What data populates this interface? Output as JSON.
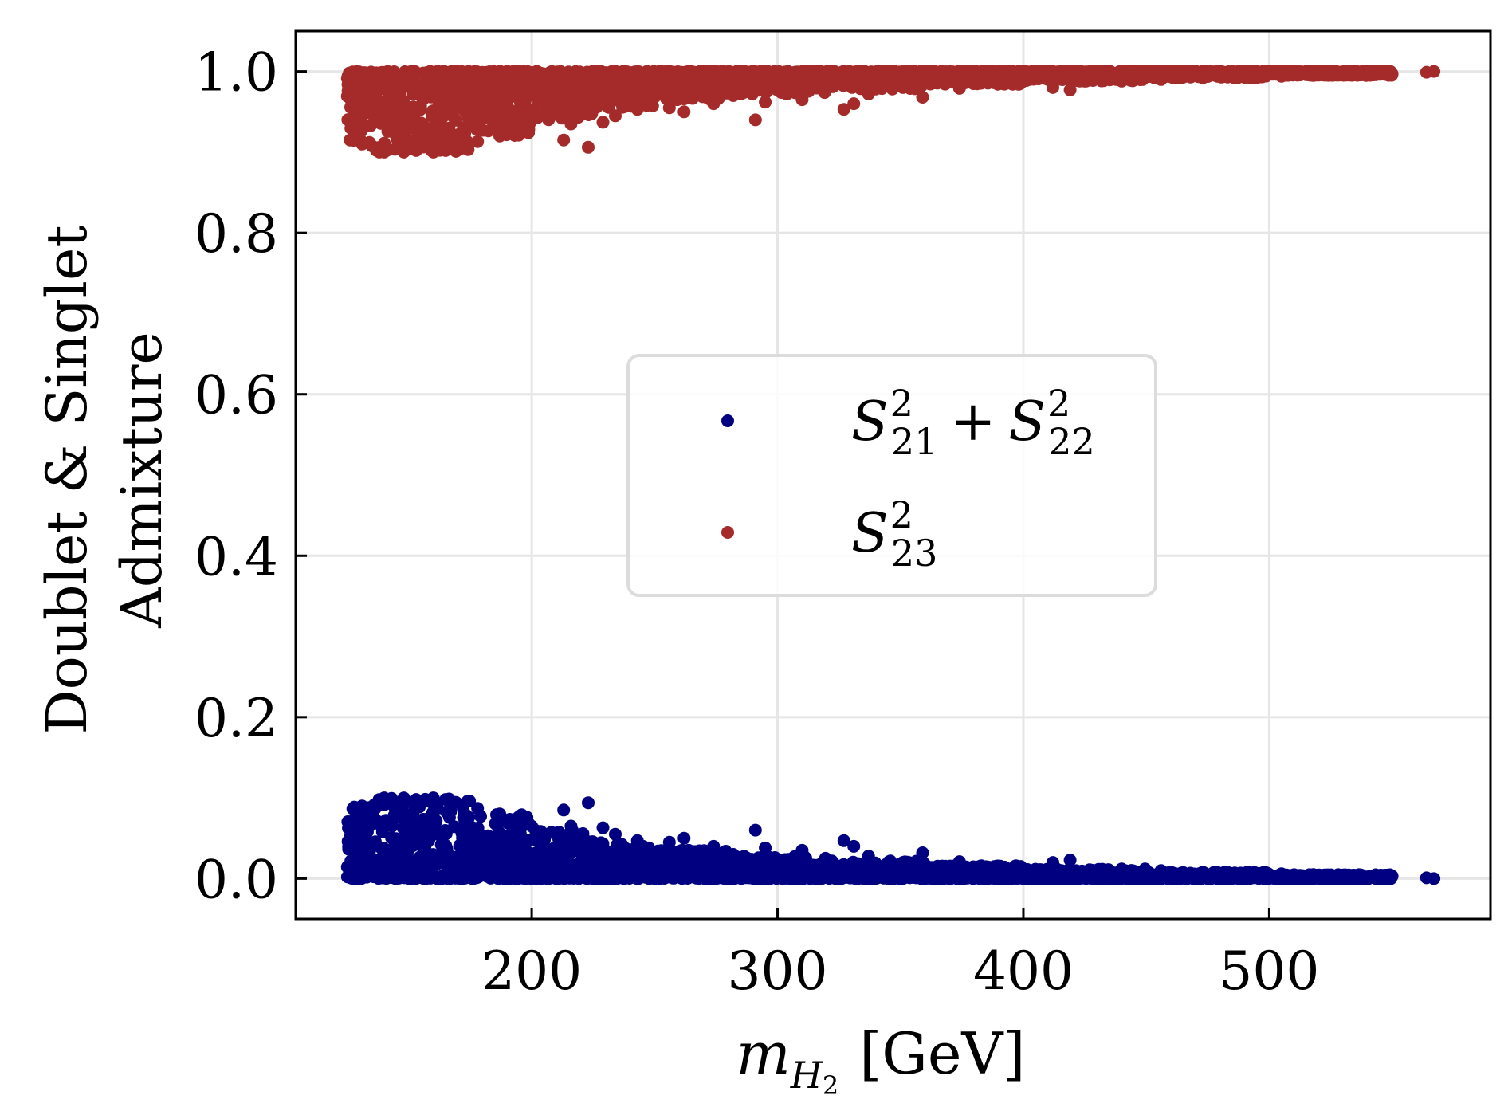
{
  "chart_data": {
    "type": "scatter",
    "title": "",
    "xlabel": {
      "base": "m",
      "sub": "H",
      "subsub": "2",
      "unit": "[GeV]"
    },
    "ylabel": {
      "line1": "Doublet & Singlet",
      "line2": "Admixture"
    },
    "xlim": [
      104,
      590
    ],
    "ylim": [
      -0.05,
      1.05
    ],
    "xticks": [
      200,
      300,
      400,
      500
    ],
    "xtick_labels": [
      "200",
      "300",
      "400",
      "500"
    ],
    "yticks": [
      0.0,
      0.2,
      0.4,
      0.6,
      0.8,
      1.0
    ],
    "ytick_labels": [
      "0.0",
      "0.2",
      "0.4",
      "0.6",
      "0.8",
      "1.0"
    ],
    "grid": true,
    "legend_placement": "center",
    "legend": [
      {
        "key": "doublet",
        "parts": [
          [
            "S",
            "2",
            "21"
          ],
          [
            "+"
          ],
          [
            "S",
            "2",
            "22"
          ]
        ]
      },
      {
        "key": "singlet",
        "parts": [
          [
            "S",
            "2",
            "23"
          ]
        ]
      }
    ],
    "colors": {
      "doublet": "#000080",
      "singlet": "#a52a2a",
      "grid": "#e6e6e6",
      "legend_border": "#dcdcdc"
    },
    "series": [
      {
        "name": "S^2_21 + S^2_22",
        "color": "#000080",
        "bands": [
          {
            "x": [
              125,
              135
            ],
            "ymax": 0.09
          },
          {
            "x": [
              135,
              150
            ],
            "ymax": 0.1
          },
          {
            "x": [
              150,
              175
            ],
            "ymax": 0.1
          },
          {
            "x": [
              175,
              200
            ],
            "ymax": 0.08
          },
          {
            "x": [
              200,
              225
            ],
            "ymax": 0.06
          },
          {
            "x": [
              225,
              250
            ],
            "ymax": 0.045
          },
          {
            "x": [
              250,
              280
            ],
            "ymax": 0.035
          },
          {
            "x": [
              280,
              320
            ],
            "ymax": 0.028
          },
          {
            "x": [
              320,
              360
            ],
            "ymax": 0.022
          },
          {
            "x": [
              360,
              400
            ],
            "ymax": 0.016
          },
          {
            "x": [
              400,
              450
            ],
            "ymax": 0.012
          },
          {
            "x": [
              450,
              500
            ],
            "ymax": 0.008
          },
          {
            "x": [
              500,
              550
            ],
            "ymax": 0.005
          }
        ],
        "points": [
          [
            129,
            0.06
          ],
          [
            131,
            0.09
          ],
          [
            134,
            0.088
          ],
          [
            140,
            0.1
          ],
          [
            148,
            0.1
          ],
          [
            153,
            0.098
          ],
          [
            160,
            0.1
          ],
          [
            165,
            0.098
          ],
          [
            172,
            0.09
          ],
          [
            178,
            0.087
          ],
          [
            187,
            0.08
          ],
          [
            198,
            0.075
          ],
          [
            206,
            0.055
          ],
          [
            213,
            0.085
          ],
          [
            216,
            0.065
          ],
          [
            223,
            0.094
          ],
          [
            229,
            0.063
          ],
          [
            234,
            0.055
          ],
          [
            243,
            0.047
          ],
          [
            256,
            0.045
          ],
          [
            262,
            0.05
          ],
          [
            274,
            0.04
          ],
          [
            282,
            0.03
          ],
          [
            291,
            0.06
          ],
          [
            295,
            0.038
          ],
          [
            310,
            0.035
          ],
          [
            327,
            0.047
          ],
          [
            331,
            0.04
          ],
          [
            337,
            0.028
          ],
          [
            351,
            0.02
          ],
          [
            359,
            0.032
          ],
          [
            374,
            0.021
          ],
          [
            390,
            0.015
          ],
          [
            412,
            0.02
          ],
          [
            419,
            0.023
          ],
          [
            440,
            0.012
          ],
          [
            456,
            0.01
          ],
          [
            473,
            0.008
          ],
          [
            486,
            0.007
          ],
          [
            505,
            0.006
          ],
          [
            518,
            0.005
          ],
          [
            528,
            0.004
          ],
          [
            535,
            0.002
          ],
          [
            541,
            0.002
          ],
          [
            545,
            0.003
          ],
          [
            550,
            0.003
          ],
          [
            564,
            0.001
          ],
          [
            567,
            0.0
          ]
        ]
      },
      {
        "name": "S^2_23",
        "color": "#a52a2a",
        "bands": [
          {
            "x": [
              125,
              135
            ],
            "ymin": 0.91
          },
          {
            "x": [
              135,
              150
            ],
            "ymin": 0.9
          },
          {
            "x": [
              150,
              175
            ],
            "ymin": 0.9
          },
          {
            "x": [
              175,
              200
            ],
            "ymin": 0.92
          },
          {
            "x": [
              200,
              225
            ],
            "ymin": 0.94
          },
          {
            "x": [
              225,
              250
            ],
            "ymin": 0.955
          },
          {
            "x": [
              250,
              280
            ],
            "ymin": 0.965
          },
          {
            "x": [
              280,
              320
            ],
            "ymin": 0.972
          },
          {
            "x": [
              320,
              360
            ],
            "ymin": 0.978
          },
          {
            "x": [
              360,
              400
            ],
            "ymin": 0.984
          },
          {
            "x": [
              400,
              450
            ],
            "ymin": 0.988
          },
          {
            "x": [
              450,
              500
            ],
            "ymin": 0.992
          },
          {
            "x": [
              500,
              550
            ],
            "ymin": 0.995
          }
        ],
        "points": [
          [
            129,
            0.94
          ],
          [
            131,
            0.91
          ],
          [
            134,
            0.912
          ],
          [
            140,
            0.9
          ],
          [
            148,
            0.9
          ],
          [
            153,
            0.902
          ],
          [
            160,
            0.9
          ],
          [
            165,
            0.902
          ],
          [
            172,
            0.91
          ],
          [
            178,
            0.913
          ],
          [
            187,
            0.92
          ],
          [
            198,
            0.925
          ],
          [
            206,
            0.945
          ],
          [
            213,
            0.915
          ],
          [
            216,
            0.935
          ],
          [
            223,
            0.906
          ],
          [
            229,
            0.937
          ],
          [
            234,
            0.945
          ],
          [
            243,
            0.953
          ],
          [
            256,
            0.955
          ],
          [
            262,
            0.95
          ],
          [
            274,
            0.96
          ],
          [
            282,
            0.97
          ],
          [
            291,
            0.94
          ],
          [
            295,
            0.962
          ],
          [
            310,
            0.965
          ],
          [
            327,
            0.953
          ],
          [
            331,
            0.96
          ],
          [
            337,
            0.972
          ],
          [
            351,
            0.98
          ],
          [
            359,
            0.968
          ],
          [
            374,
            0.979
          ],
          [
            390,
            0.985
          ],
          [
            412,
            0.98
          ],
          [
            419,
            0.977
          ],
          [
            440,
            0.988
          ],
          [
            456,
            0.99
          ],
          [
            473,
            0.992
          ],
          [
            486,
            0.993
          ],
          [
            505,
            0.994
          ],
          [
            518,
            0.995
          ],
          [
            528,
            0.996
          ],
          [
            535,
            0.998
          ],
          [
            541,
            0.998
          ],
          [
            545,
            0.997
          ],
          [
            550,
            0.997
          ],
          [
            564,
            0.999
          ],
          [
            567,
            1.0
          ]
        ]
      }
    ]
  }
}
